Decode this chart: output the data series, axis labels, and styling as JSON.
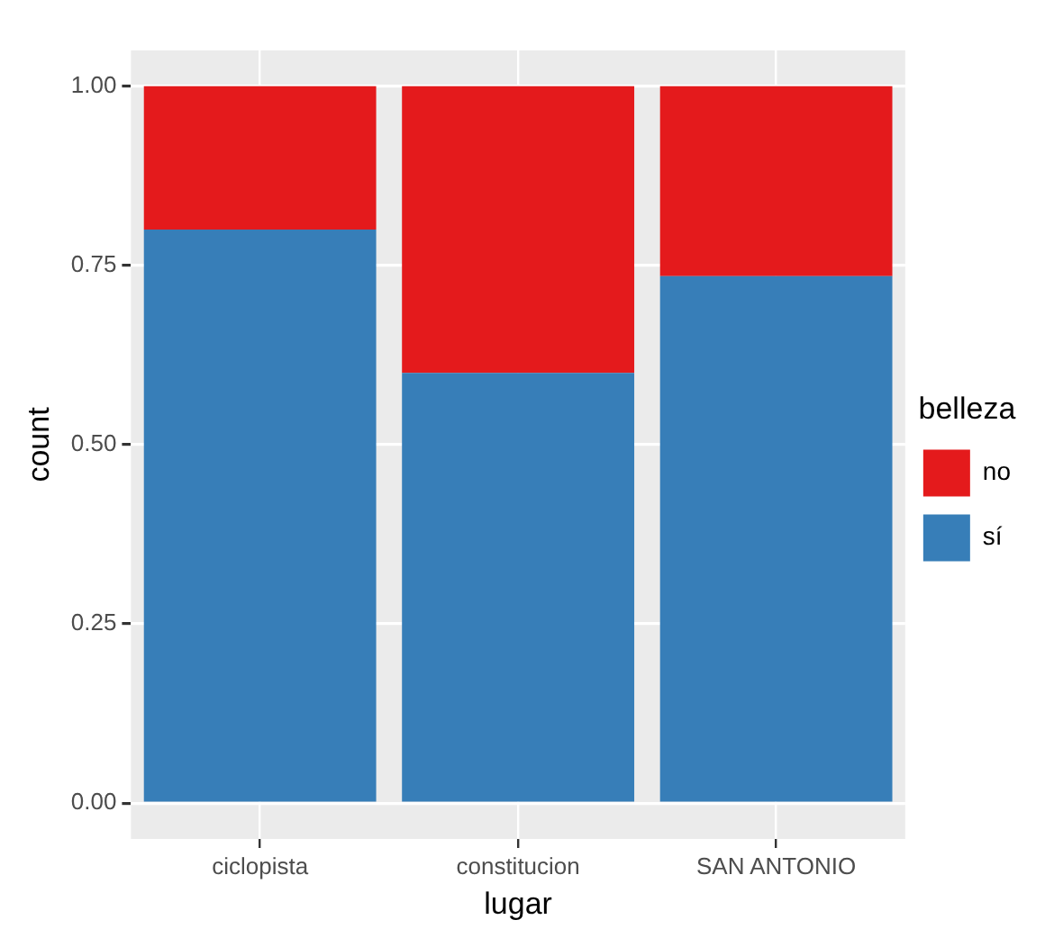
{
  "chart_data": {
    "type": "bar",
    "xlabel": "lugar",
    "ylabel": "count",
    "legend_title": "belleza",
    "categories": [
      "ciclopista",
      "constitucion",
      "SAN ANTONIO"
    ],
    "series": [
      {
        "name": "sí",
        "color": "#377eb8",
        "values": [
          0.8,
          0.6,
          0.735
        ]
      },
      {
        "name": "no",
        "color": "#e41a1c",
        "values": [
          0.2,
          0.4,
          0.265
        ]
      }
    ],
    "stacked": true,
    "ylim": [
      -0.05,
      1.05
    ],
    "yticks": [
      {
        "value": 0,
        "label": "0.00"
      },
      {
        "value": 0.25,
        "label": "0.25"
      },
      {
        "value": 0.5,
        "label": "0.50"
      },
      {
        "value": 0.75,
        "label": "0.75"
      },
      {
        "value": 1,
        "label": "1.00"
      }
    ],
    "grid": true,
    "legend": "right"
  }
}
